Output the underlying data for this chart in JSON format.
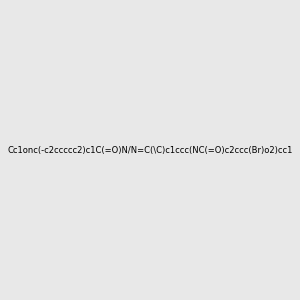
{
  "smiles": "Cc1onc(-c2ccccc2)c1C(=O)N/N=C(\\C)c1ccc(NC(=O)c2ccc(Br)o2)cc1",
  "title": "",
  "background_color": "#e8e8e8",
  "figsize": [
    3.0,
    3.0
  ],
  "dpi": 100
}
